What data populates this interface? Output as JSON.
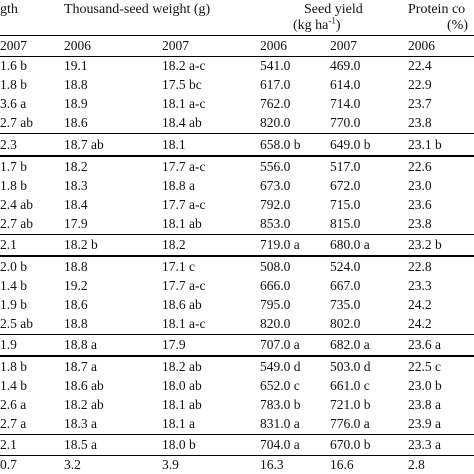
{
  "header": {
    "col_length": "gth",
    "col_tsw": "Thousand-seed weight (g)",
    "col_seed_yield": "Seed yield",
    "col_seed_yield_unit_pre": "(kg ha",
    "col_seed_yield_unit_sup": "-1",
    "col_seed_yield_unit_post": ")",
    "col_protein": "Protein co",
    "col_protein_unit": "(%)"
  },
  "years": [
    "2007",
    "2006",
    "2007",
    "2006",
    "2007",
    "2006"
  ],
  "rows": [
    [
      "1.6 b",
      "19.1",
      "18.2 a-c",
      "541.0",
      "469.0",
      "22.4"
    ],
    [
      "1.8 b",
      "18.8",
      "17.5 bc",
      "617.0",
      "614.0",
      "22.9"
    ],
    [
      "3.6 a",
      "18.9",
      "18.1 a-c",
      "762.0",
      "714.0",
      "23.7"
    ],
    [
      "2.7 ab",
      "18.6",
      "18.4 ab",
      "820.0",
      "770.0",
      "23.8"
    ],
    [
      "2.3",
      "18.7 ab",
      "18.1",
      "658.0 b",
      "649.0 b",
      "23.1 b"
    ],
    [
      "1.7 b",
      "18.2",
      "17.7 a-c",
      "556.0",
      "517.0",
      "22.6"
    ],
    [
      "1.8 b",
      "18.3",
      "18.8 a",
      "673.0",
      "672.0",
      "23.0"
    ],
    [
      "2.4 ab",
      "18.4",
      "17.7 a-c",
      "792.0",
      "715.0",
      "23.6"
    ],
    [
      "2.7 ab",
      "17.9",
      "18.1 ab",
      "853.0",
      "815.0",
      "23.8"
    ],
    [
      "2.1",
      "18.2 b",
      "18.2",
      "719.0 a",
      "680.0 a",
      "23.2 b"
    ],
    [
      "2.0 b",
      "18.8",
      "17.1 c",
      "508.0",
      "524.0",
      "22.8"
    ],
    [
      "1.4 b",
      "19.2",
      "17.7 a-c",
      "666.0",
      "667.0",
      "23.3"
    ],
    [
      "1.9 b",
      "18.6",
      "18.6 ab",
      "795.0",
      "735.0",
      "24.2"
    ],
    [
      "2.5 ab",
      "18.8",
      "18.1 a-c",
      "820.0",
      "802.0",
      "24.2"
    ],
    [
      "1.9",
      "18.8 a",
      "17.9",
      "707.0 a",
      "682.0 a",
      "23.6 a"
    ],
    [
      "1.8 b",
      "18.7 a",
      "18.2 ab",
      "549.0 d",
      "503.0 d",
      "22.5 c"
    ],
    [
      "1.4 b",
      "18.6 ab",
      "18.0 ab",
      "652.0 c",
      "661.0 c",
      "23.0 b"
    ],
    [
      "2.6 a",
      "18.2 ab",
      "18.1 ab",
      "783.0 b",
      "721.0 b",
      "23.8 a"
    ],
    [
      "2.7 a",
      "18.3 a",
      "18.1 a",
      "831.0 a",
      "776.0 a",
      "23.9 a"
    ],
    [
      "2.1",
      "18.5 a",
      "18.0 b",
      "704.0 a",
      "670.0 b",
      "23.3 a"
    ],
    [
      "0.7",
      "3.2",
      "3.9",
      "16.3",
      "16.6",
      "2.8"
    ]
  ]
}
